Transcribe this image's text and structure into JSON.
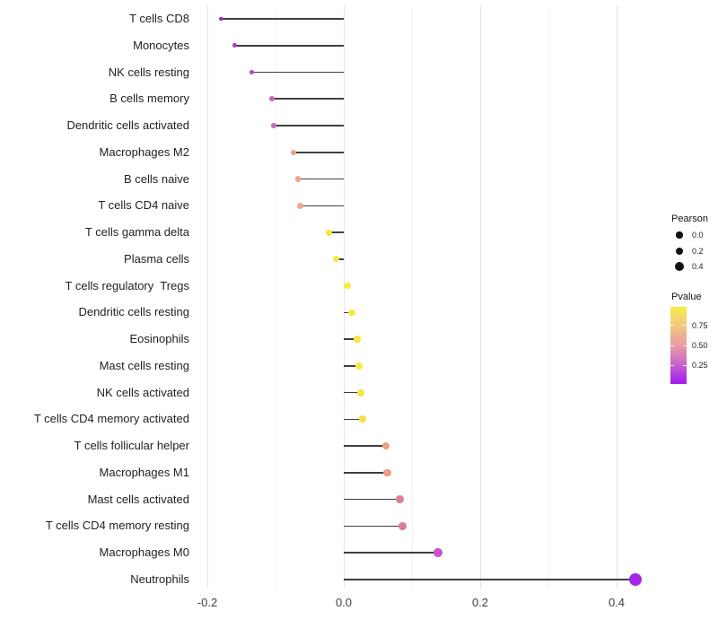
{
  "chart_data": {
    "type": "lollipop",
    "orientation": "horizontal",
    "title": "",
    "xlabel": "",
    "ylabel": "",
    "xlim": [
      -0.22,
      0.46
    ],
    "grid": true,
    "x_ticks": [
      {
        "label": "-0.2",
        "value": -0.2
      },
      {
        "label": "0.0",
        "value": 0.0
      },
      {
        "label": "0.2",
        "value": 0.2
      },
      {
        "label": "0.4",
        "value": 0.4
      }
    ],
    "categories": [
      "T cells CD8",
      "Monocytes",
      "NK cells resting",
      "B cells memory",
      "Dendritic cells activated",
      "Macrophages M2",
      "B cells naive",
      "T cells CD4 naive",
      "T cells gamma delta",
      "Plasma cells",
      "T cells regulatory  Tregs",
      "Dendritic cells resting",
      "Eosinophils",
      "Mast cells resting",
      "NK cells activated",
      "T cells CD4 memory activated",
      "T cells follicular helper",
      "Macrophages M1",
      "Mast cells activated",
      "T cells CD4 memory resting",
      "Macrophages M0",
      "Neutrophils"
    ],
    "series": [
      {
        "name": "Pearson correlation",
        "values": [
          -0.18,
          -0.16,
          -0.135,
          -0.105,
          -0.103,
          -0.074,
          -0.067,
          -0.064,
          -0.022,
          -0.011,
          0.005,
          0.012,
          0.02,
          0.022,
          0.025,
          0.028,
          0.062,
          0.064,
          0.082,
          0.086,
          0.138,
          0.428
        ]
      },
      {
        "name": "Pvalue (estimated from color scale)",
        "values": [
          0.17,
          0.2,
          0.22,
          0.3,
          0.31,
          0.55,
          0.55,
          0.57,
          0.9,
          0.92,
          0.93,
          0.92,
          0.9,
          0.9,
          0.88,
          0.87,
          0.53,
          0.52,
          0.42,
          0.41,
          0.24,
          0.02
        ]
      }
    ],
    "dot_colors": [
      "#9b30c0",
      "#a43ec6",
      "#af4cc9",
      "#c667bd",
      "#c76cb8",
      "#eda385",
      "#efa687",
      "#f0a98b",
      "#f4e63e",
      "#f6ea3d",
      "#f7ec3d",
      "#f6eb3d",
      "#f5e93e",
      "#f5e93e",
      "#f4e73e",
      "#f3e43f",
      "#eba183",
      "#ea9f81",
      "#dc8095",
      "#da7d98",
      "#c553ce",
      "#a826ea"
    ],
    "legend": {
      "size": {
        "title": "Pearson",
        "breaks": [
          {
            "label": "0.0",
            "value": 0.0
          },
          {
            "label": "0.2",
            "value": 0.2
          },
          {
            "label": "0.4",
            "value": 0.4
          }
        ]
      },
      "color": {
        "title": "Pvalue",
        "ticks": [
          {
            "label": "0.75",
            "value": 0.75
          },
          {
            "label": "0.50",
            "value": 0.5
          },
          {
            "label": "0.25",
            "value": 0.25
          }
        ],
        "gradient_top_color": "#f9ed3c",
        "gradient_bottom_color": "#a21bf0"
      },
      "position": "right"
    }
  },
  "colors": {
    "background": "#ffffff",
    "stick": "#3f3f3f",
    "major_grid": "#e4e4e4",
    "minor_grid": "#f3f3f3",
    "axis_text": "#404040",
    "category_text": "#1f1f1f",
    "legend_dot": "#121212"
  }
}
